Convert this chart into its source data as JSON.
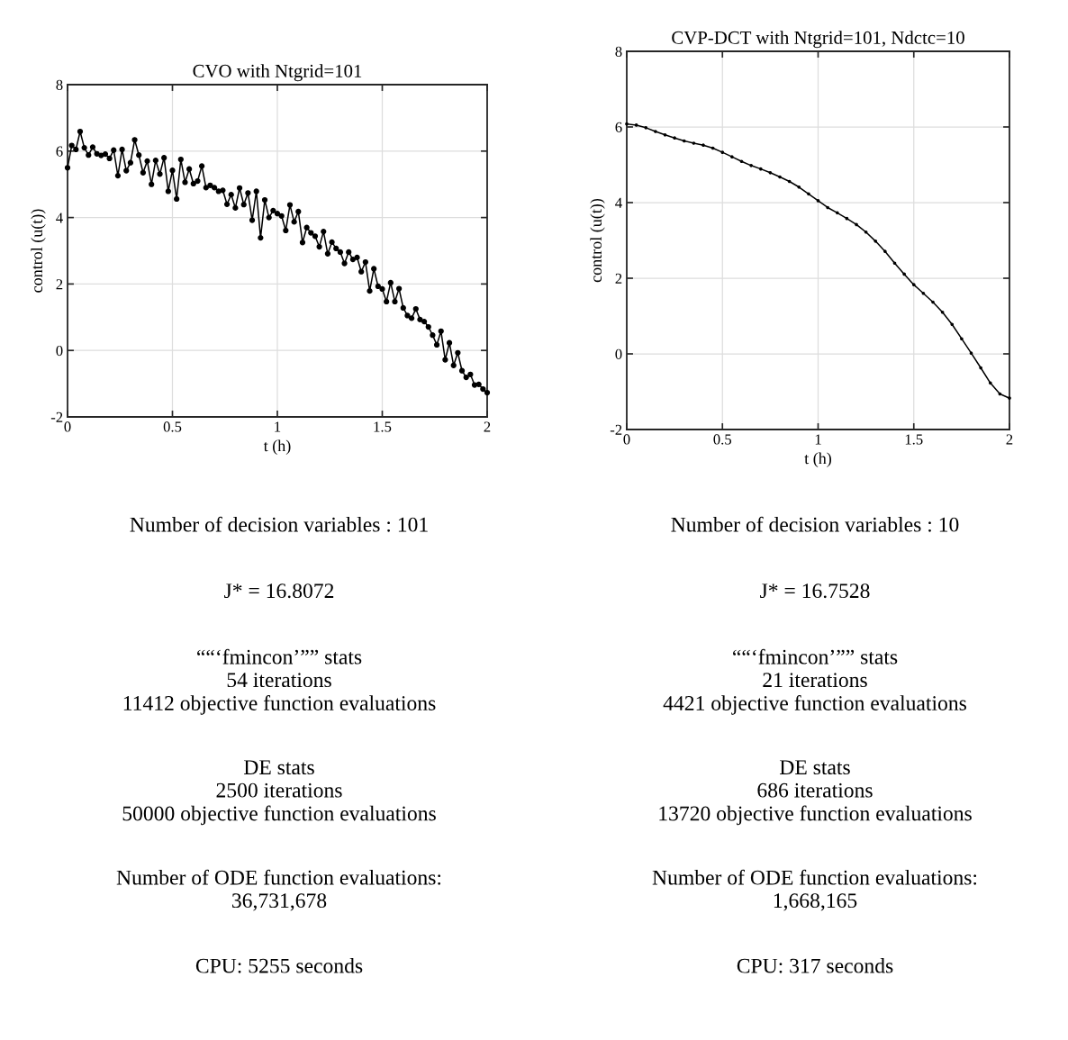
{
  "chart_data": [
    {
      "type": "line",
      "title": "CVO with Ntgrid=101",
      "xlabel": "t (h)",
      "ylabel": "control (u(t))",
      "x": [
        0,
        0.02,
        0.04,
        0.06,
        0.08,
        0.1,
        0.12,
        0.14,
        0.16,
        0.18,
        0.2,
        0.22,
        0.24,
        0.26,
        0.28,
        0.3,
        0.32,
        0.34,
        0.36,
        0.38,
        0.4,
        0.42,
        0.44,
        0.46,
        0.48,
        0.5,
        0.52,
        0.54,
        0.56,
        0.58,
        0.6,
        0.62,
        0.64,
        0.66,
        0.68,
        0.7,
        0.72,
        0.74,
        0.76,
        0.78,
        0.8,
        0.82,
        0.84,
        0.86,
        0.88,
        0.9,
        0.92,
        0.94,
        0.96,
        0.98,
        1,
        1.02,
        1.04,
        1.06,
        1.08,
        1.1,
        1.12,
        1.14,
        1.16,
        1.18,
        1.2,
        1.22,
        1.24,
        1.26,
        1.28,
        1.3,
        1.32,
        1.34,
        1.36,
        1.38,
        1.4,
        1.42,
        1.44,
        1.46,
        1.48,
        1.5,
        1.52,
        1.54,
        1.56,
        1.58,
        1.6,
        1.62,
        1.64,
        1.66,
        1.68,
        1.7,
        1.72,
        1.74,
        1.76,
        1.78,
        1.8,
        1.82,
        1.84,
        1.86,
        1.88,
        1.9,
        1.92,
        1.94,
        1.96,
        1.98,
        2
      ],
      "series": [
        {
          "color": "#000000",
          "marker": "circle",
          "values": [
            5.5,
            6.17,
            6.05,
            6.59,
            6.1,
            5.88,
            6.12,
            5.92,
            5.87,
            5.91,
            5.78,
            6.03,
            5.26,
            6.05,
            5.41,
            5.65,
            6.34,
            5.88,
            5.35,
            5.7,
            5.0,
            5.72,
            5.31,
            5.8,
            4.79,
            5.42,
            4.56,
            5.75,
            5.06,
            5.46,
            5.02,
            5.1,
            5.55,
            4.9,
            4.97,
            4.9,
            4.79,
            4.82,
            4.4,
            4.69,
            4.29,
            4.89,
            4.39,
            4.74,
            3.92,
            4.79,
            3.39,
            4.53,
            4.0,
            4.21,
            4.12,
            4.05,
            3.61,
            4.38,
            3.87,
            4.18,
            3.25,
            3.7,
            3.54,
            3.44,
            3.12,
            3.58,
            2.91,
            3.26,
            3.07,
            2.96,
            2.62,
            2.96,
            2.74,
            2.8,
            2.37,
            2.66,
            1.79,
            2.46,
            1.93,
            1.85,
            1.47,
            2.04,
            1.47,
            1.86,
            1.28,
            1.05,
            0.97,
            1.25,
            0.93,
            0.87,
            0.71,
            0.46,
            0.17,
            0.58,
            -0.28,
            0.23,
            -0.45,
            -0.07,
            -0.61,
            -0.81,
            -0.72,
            -1.04,
            -1.02,
            -1.16,
            -1.27
          ]
        }
      ],
      "xlim": [
        0,
        2
      ],
      "ylim": [
        -2,
        8
      ],
      "xticks": [
        0,
        0.5,
        1,
        1.5,
        2
      ],
      "yticks": [
        -2,
        0,
        2,
        4,
        6,
        8
      ],
      "grid": true,
      "line_style": "solid",
      "annotations": [
        "Number of decision variables : 101",
        "J* = 16.8072",
        "““‘fmincon’”” stats\n54 iterations\n11412 objective function evaluations",
        "DE stats\n2500 iterations\n50000 objective function evaluations",
        "Number of ODE function evaluations:\n36,731,678",
        "CPU: 5255 seconds"
      ]
    },
    {
      "type": "line",
      "title": "CVP-DCT with Ntgrid=101, Ndctc=10",
      "xlabel": "t (h)",
      "ylabel": "control (u(t))",
      "x": [
        0,
        0.05,
        0.1,
        0.15,
        0.2,
        0.25,
        0.3,
        0.35,
        0.4,
        0.45,
        0.5,
        0.55,
        0.6,
        0.65,
        0.7,
        0.75,
        0.8,
        0.85,
        0.9,
        0.95,
        1,
        1.05,
        1.1,
        1.15,
        1.2,
        1.25,
        1.3,
        1.35,
        1.4,
        1.45,
        1.5,
        1.55,
        1.6,
        1.65,
        1.7,
        1.75,
        1.8,
        1.85,
        1.9,
        1.95,
        2
      ],
      "series": [
        {
          "color": "#000000",
          "marker": "circle",
          "values": [
            6.08,
            6.05,
            5.98,
            5.88,
            5.79,
            5.71,
            5.63,
            5.57,
            5.52,
            5.44,
            5.33,
            5.21,
            5.09,
            4.98,
            4.89,
            4.79,
            4.68,
            4.56,
            4.41,
            4.23,
            4.05,
            3.87,
            3.73,
            3.58,
            3.42,
            3.22,
            2.98,
            2.71,
            2.4,
            2.11,
            1.83,
            1.6,
            1.37,
            1.1,
            0.78,
            0.4,
            0.02,
            -0.37,
            -0.77,
            -1.06,
            -1.17
          ]
        }
      ],
      "xlim": [
        0,
        2
      ],
      "ylim": [
        -2,
        8
      ],
      "xticks": [
        0,
        0.5,
        1,
        1.5,
        2
      ],
      "yticks": [
        -2,
        0,
        2,
        4,
        6,
        8
      ],
      "grid": true,
      "line_style": "solid",
      "annotations": [
        "Number of decision variables : 10",
        "J* = 16.7528",
        "““‘fmincon’”” stats\n21 iterations\n4421 objective function evaluations",
        "DE stats\n686 iterations\n13720 objective function evaluations",
        "Number of ODE function evaluations:\n1,668,165",
        "CPU: 317 seconds"
      ]
    }
  ]
}
